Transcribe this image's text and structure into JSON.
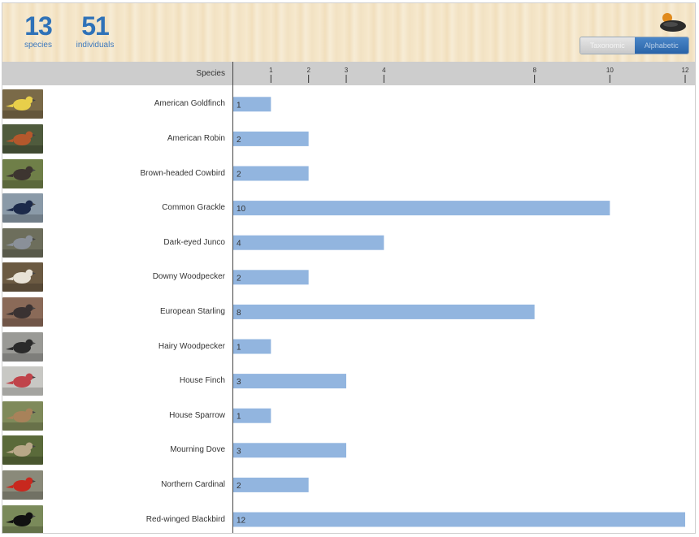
{
  "summary": {
    "species_count": "13",
    "species_label": "species",
    "individuals_count": "51",
    "individuals_label": "individuals"
  },
  "sort_toggle": {
    "options": [
      "Taxonomic",
      "Alphabetic"
    ],
    "selected": "Alphabetic"
  },
  "colors": {
    "bar": "#92b5df",
    "accent": "#2f72b8",
    "axis_band": "#cdcdcd"
  },
  "chart_data": {
    "type": "bar",
    "orientation": "horizontal",
    "category_header": "Species",
    "ticks": [
      1,
      2,
      3,
      4,
      8,
      10,
      12
    ],
    "xlim": [
      0,
      12
    ],
    "categories": [
      "American Goldfinch",
      "American Robin",
      "Brown-headed Cowbird",
      "Common Grackle",
      "Dark-eyed Junco",
      "Downy Woodpecker",
      "European Starling",
      "Hairy Woodpecker",
      "House Finch",
      "House Sparrow",
      "Mourning Dove",
      "Northern Cardinal",
      "Red-winged Blackbird"
    ],
    "values": [
      1,
      2,
      2,
      10,
      4,
      2,
      8,
      1,
      3,
      1,
      3,
      2,
      12
    ],
    "thumbnail_icons": [
      "american-goldfinch-photo",
      "american-robin-photo",
      "brown-headed-cowbird-photo",
      "common-grackle-photo",
      "dark-eyed-junco-photo",
      "downy-woodpecker-photo",
      "european-starling-photo",
      "hairy-woodpecker-photo",
      "house-finch-photo",
      "house-sparrow-photo",
      "mourning-dove-photo",
      "northern-cardinal-photo",
      "red-winged-blackbird-photo"
    ],
    "thumbnail_colors": [
      [
        "#7a6a48",
        "#e8cf4a"
      ],
      [
        "#4f5b3d",
        "#b4582c"
      ],
      [
        "#6f7f48",
        "#3d3530"
      ],
      [
        "#8a9aa8",
        "#1c2a4a"
      ],
      [
        "#6d6e5c",
        "#8a9099"
      ],
      [
        "#6b5a42",
        "#e8e2d6"
      ],
      [
        "#8a6a58",
        "#3a3232"
      ],
      [
        "#9a9a96",
        "#2a2a2a"
      ],
      [
        "#c8c8c4",
        "#c0444a"
      ],
      [
        "#7f8a5a",
        "#a8825a"
      ],
      [
        "#5a6a3a",
        "#b8a888"
      ],
      [
        "#8a8a7a",
        "#c8281e"
      ],
      [
        "#7a8a5a",
        "#111111"
      ]
    ]
  }
}
